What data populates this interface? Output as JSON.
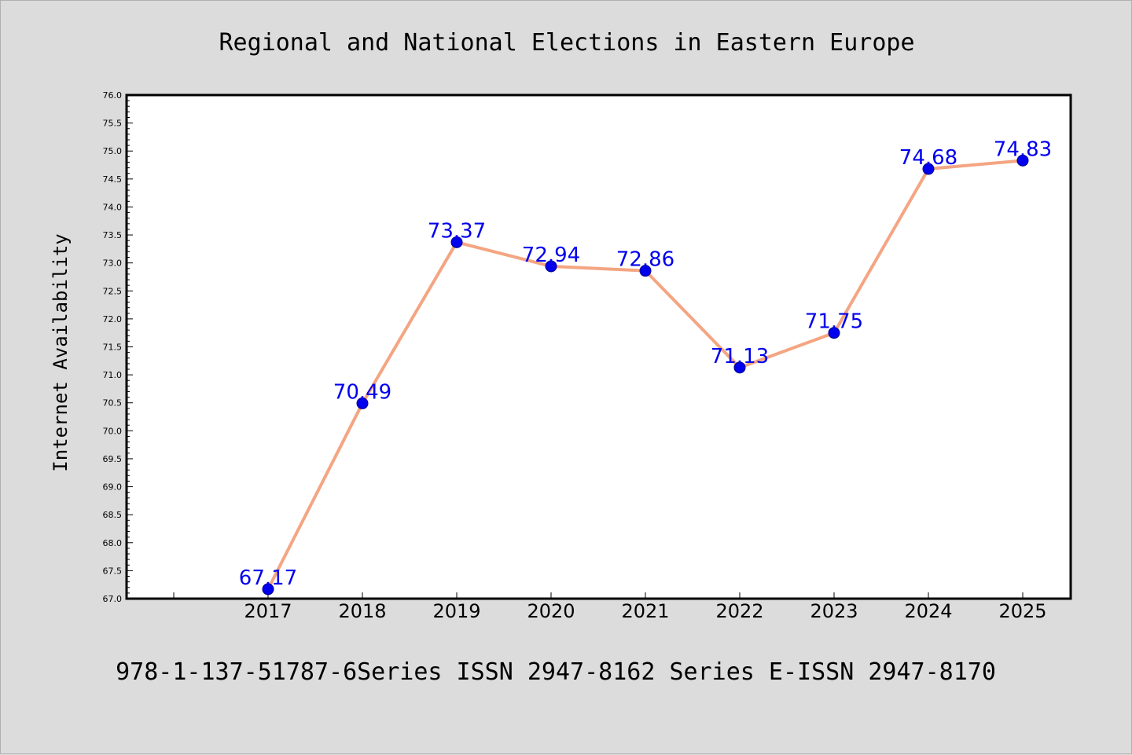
{
  "chart_data": {
    "type": "line",
    "title": "Regional and National Elections in Eastern Europe",
    "xlabel": "",
    "ylabel": "Internet Availability",
    "categories": [
      "2017",
      "2018",
      "2019",
      "2020",
      "2021",
      "2022",
      "2023",
      "2024",
      "2025"
    ],
    "series": [
      {
        "values": [
          67.17,
          70.49,
          73.37,
          72.94,
          72.86,
          71.13,
          71.75,
          74.68,
          74.83
        ],
        "labels": [
          "67.17",
          "70.49",
          "73.37",
          "72.94",
          "72.86",
          "71.13",
          "71.75",
          "74.68",
          "74.83"
        ],
        "line_color": "#f4a582",
        "marker_color": "#0000ee"
      }
    ],
    "ylim": [
      67.0,
      76.0
    ],
    "ytick_labels": [
      "67.0",
      "67.5",
      "68.0",
      "68.5",
      "69.0",
      "69.5",
      "70.0",
      "70.5",
      "71.0",
      "71.5",
      "72.0",
      "72.5",
      "73.0",
      "73.5",
      "74.0",
      "74.5",
      "75.0",
      "75.5",
      "76.0"
    ],
    "grid": false,
    "legend": "none"
  },
  "footer": {
    "text": "978-1-137-51787-6Series ISSN 2947-8162 Series E-ISSN 2947-8170"
  }
}
